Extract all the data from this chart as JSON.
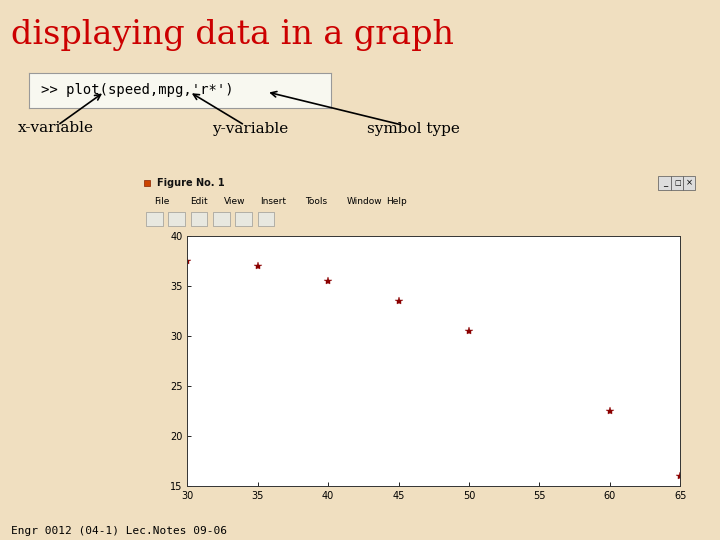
{
  "title": "displaying data in a graph",
  "title_color": "#cc0000",
  "title_fontsize": 24,
  "bg_color": "#f0dfc0",
  "code_text": ">> plot(speed,mpg,'r*')",
  "speed": [
    30,
    35,
    40,
    45,
    50,
    60,
    65
  ],
  "mpg": [
    37.5,
    37.0,
    35.5,
    33.5,
    30.5,
    22.5,
    16.0
  ],
  "marker_color": "#8b0000",
  "xlim": [
    30,
    65
  ],
  "ylim": [
    15,
    40
  ],
  "xticks": [
    30,
    35,
    40,
    45,
    50,
    55,
    60,
    65
  ],
  "yticks": [
    15,
    20,
    25,
    30,
    35,
    40
  ],
  "plot_bg": "#ffffff",
  "outer_bg": "#aaaaaa",
  "footer_text": "Engr 0012 (04-1) Lec.Notes 09-06",
  "footer_fontsize": 8,
  "window_title": "Figure No. 1",
  "window_bar_color": "#c0a040",
  "menu_items": [
    "File",
    "Edit",
    "View",
    "Insert",
    "Tools",
    "Window",
    "Help"
  ]
}
